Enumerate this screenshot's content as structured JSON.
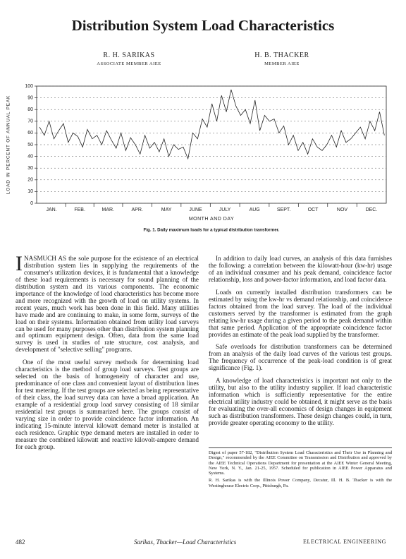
{
  "header": {
    "title": "Distribution System Load Characteristics",
    "authors": [
      {
        "name": "R. H. SARIKAS",
        "affiliation": "ASSOCIATE MEMBER AIEE"
      },
      {
        "name": "H. B. THACKER",
        "affiliation": "MEMBER AIEE"
      }
    ]
  },
  "chart_data": {
    "type": "line",
    "ylabel": "LOAD IN PERCENT OF ANNUAL PEAK",
    "xlabel": "MONTH AND DAY",
    "caption": "Fig. 1. Daily maximum loads for a typical distribution transformer.",
    "color": "#222222",
    "grid": true,
    "xlim": [
      0,
      365
    ],
    "ylim": [
      0,
      100
    ],
    "yticks": [
      0,
      10,
      20,
      30,
      40,
      50,
      60,
      70,
      80,
      90,
      100
    ],
    "xticks": [
      {
        "value": 15.5,
        "label": "JAN."
      },
      {
        "value": 45,
        "label": "FEB."
      },
      {
        "value": 74.5,
        "label": "MAR."
      },
      {
        "value": 105,
        "label": "APR."
      },
      {
        "value": 135.5,
        "label": "MAY"
      },
      {
        "value": 166,
        "label": "JUNE"
      },
      {
        "value": 196.5,
        "label": "JULY"
      },
      {
        "value": 227.5,
        "label": "AUG"
      },
      {
        "value": 258,
        "label": "SEPT."
      },
      {
        "value": 288.5,
        "label": "OCT"
      },
      {
        "value": 319,
        "label": "NOV"
      },
      {
        "value": 349.5,
        "label": "DEC."
      }
    ],
    "x": [
      3,
      8,
      13,
      18,
      23,
      28,
      33,
      38,
      43,
      48,
      53,
      58,
      63,
      68,
      73,
      78,
      83,
      88,
      93,
      98,
      103,
      108,
      113,
      118,
      123,
      128,
      133,
      138,
      143,
      148,
      153,
      158,
      163,
      168,
      173,
      178,
      183,
      188,
      193,
      198,
      203,
      208,
      213,
      218,
      223,
      228,
      233,
      238,
      243,
      248,
      253,
      258,
      263,
      268,
      273,
      278,
      283,
      288,
      293,
      298,
      303,
      308,
      313,
      318,
      323,
      328,
      333,
      338,
      343,
      348,
      353,
      358,
      363
    ],
    "values": [
      65,
      58,
      70,
      55,
      62,
      68,
      52,
      60,
      57,
      48,
      63,
      55,
      58,
      50,
      62,
      54,
      47,
      60,
      45,
      56,
      50,
      42,
      58,
      47,
      52,
      44,
      55,
      40,
      50,
      46,
      48,
      38,
      60,
      55,
      72,
      65,
      85,
      70,
      92,
      78,
      97,
      83,
      75,
      80,
      68,
      88,
      62,
      75,
      70,
      72,
      60,
      66,
      50,
      58,
      45,
      52,
      42,
      55,
      48,
      45,
      50,
      58,
      48,
      62,
      52,
      55,
      60,
      65,
      55,
      70,
      62,
      78,
      58
    ]
  },
  "body": {
    "left": [
      "INASMUCH AS the sole purpose for the existence of an electrical distribution system lies in supplying the requirements of the consumer's utilization devices, it is fundamental that a knowledge of these load requirements is necessary for sound planning of the distribution system and its various components. The economic importance of the knowledge of load characteristics has become more and more recognized with the growth of load on utility systems. In recent years, much work has been done in this field. Many utilities have made and are continuing to make, in some form, surveys of the load on their systems. Information obtained from utility load surveys can be used for many purposes other than distribution system planning and optimum equipment design. Often, data from the same load survey is used in studies of rate structure, cost analysis, and development of \"selective selling\" programs.",
      "One of the most useful survey methods for determining load characteristics is the method of group load surveys. Test groups are selected on the basis of homogeneity of character and use, predominance of one class and convenient layout of distribution lines for test metering. If the test groups are selected as being representative of their class, the load survey data can have a broad application. An example of a residential group load survey consisting of 18 similar residential test groups is summarized here. The groups consist of varying size in order to provide coincidence factor information. An indicating 15-minute interval kilowatt demand meter is installed at each residence. Graphic type demand meters are installed in order to measure the combined kilowatt and reactive kilovolt-ampere demand for each group."
    ],
    "right": [
      "In addition to daily load curves, an analysis of this data furnishes the following: a correlation between the kilowatt-hour (kw-hr) usage of an individual consumer and his peak demand, coincidence factor relationship, loss and power-factor information, and load factor data.",
      "Loads on currently installed distribution transformers can be estimated by using the kw-hr vs demand relationship, and coincidence factors obtained from the load survey. The load of the individual customers served by the transformer is estimated from the graph relating kw-hr usage during a given period to the peak demand within that same period. Application of the appropriate coincidence factor provides an estimate of the peak load supplied by the transformer.",
      "Safe overloads for distribution transformers can be determined from an analysis of the daily load curves of the various test groups. The frequency of occurrence of the peak-load condition is of great significance (Fig. 1).",
      "A knowledge of load characteristics is important not only to the utility, but also to the utility industry supplier. If load characteristic information which is sufficiently representative for the entire electrical utility industry could be obtained, it might serve as the basis for evaluating the over-all economics of design changes in equipment such as distribution transformers. These design changes could, in turn, provide greater operating economy to the utility."
    ],
    "footnotes": [
      "Digest of paper 57-182, \"Distribution System Load Characteristics and Their Use in Planning and Design,\" recommended by the AIEE Committee on Transmission and Distribution and approved by the AIEE Technical Operations Department for presentation at the AIEE Winter General Meeting, New York, N. Y., Jan. 21-25, 1957. Scheduled for publication in AIEE Power Apparatus and Systems.",
      "R. H. Sarikas is with the Illinois Power Company, Decatur, Ill. H. B. Thacker is with the Westinghouse Electric Corp., Pittsburgh, Pa."
    ]
  },
  "footer": {
    "page": "482",
    "running": "Sarikas, Thacker—Load Characteristics",
    "journal": "ELECTRICAL ENGINEERING"
  }
}
